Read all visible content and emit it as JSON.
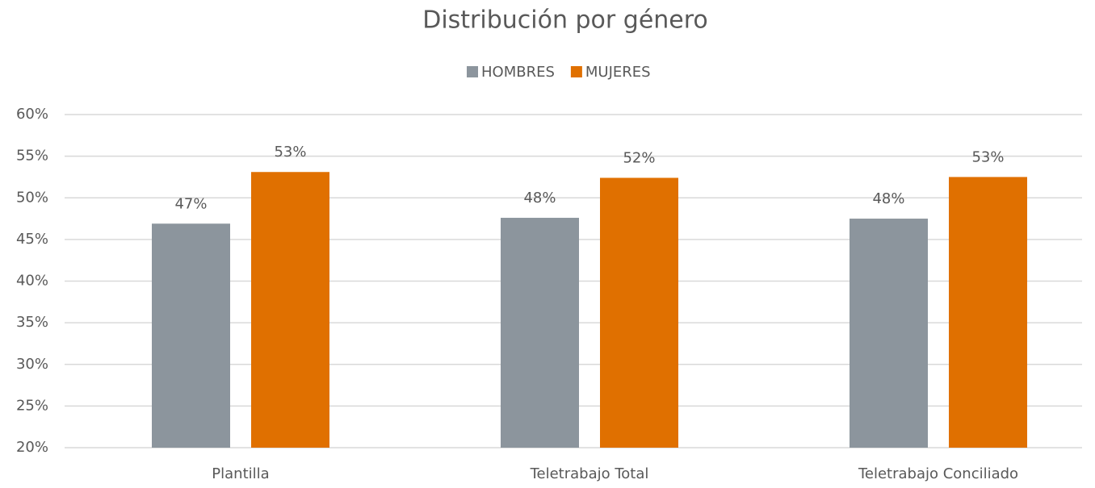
{
  "chart_data": {
    "type": "bar",
    "title": "Distribución por género",
    "categories": [
      "Plantilla",
      "Teletrabajo Total",
      "Teletrabajo Conciliado"
    ],
    "series": [
      {
        "name": "HOMBRES",
        "color": "#8c959d",
        "values": [
          46.9,
          47.6,
          47.5
        ],
        "value_labels": [
          "47%",
          "48%",
          "48%"
        ]
      },
      {
        "name": "MUJERES",
        "color": "#e07000",
        "values": [
          53.1,
          52.4,
          52.5
        ],
        "value_labels": [
          "53%",
          "52%",
          "53%"
        ]
      }
    ],
    "ylim": [
      20,
      60
    ],
    "yticks": [
      {
        "value": 20,
        "label": "20%"
      },
      {
        "value": 25,
        "label": "25%"
      },
      {
        "value": 30,
        "label": "30%"
      },
      {
        "value": 35,
        "label": "35%"
      },
      {
        "value": 40,
        "label": "40%"
      },
      {
        "value": 45,
        "label": "45%"
      },
      {
        "value": 50,
        "label": "50%"
      },
      {
        "value": 55,
        "label": "55%"
      },
      {
        "value": 60,
        "label": "60%"
      }
    ],
    "grid": true,
    "legend": "top"
  }
}
